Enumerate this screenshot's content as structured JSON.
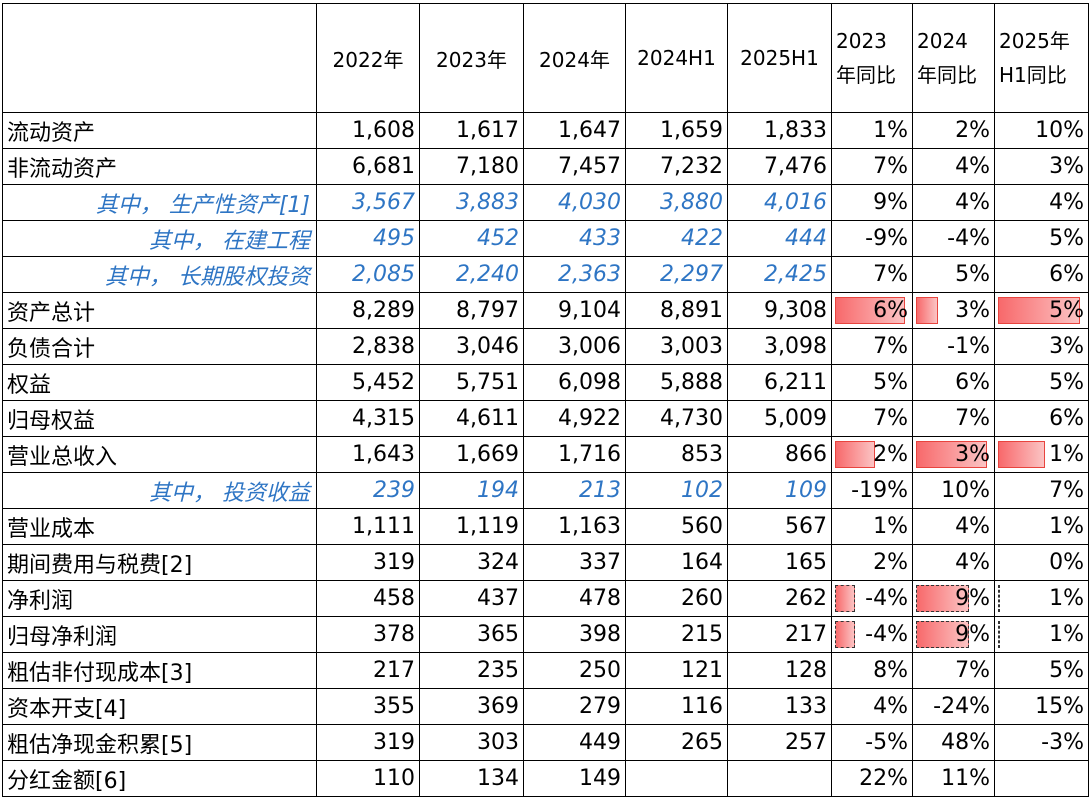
{
  "chart_data": {
    "type": "table",
    "headers": [
      "",
      "2022年",
      "2023年",
      "2024年",
      "2024H1",
      "2025H1",
      "2023\n年同比",
      "2024\n年同比",
      "2025年\nH1同比"
    ],
    "rows": [
      {
        "label": "流动资产",
        "values": [
          "1,608",
          "1,617",
          "1,647",
          "1,659",
          "1,833"
        ],
        "pct": [
          "1%",
          "2%",
          "10%"
        ],
        "sub": false
      },
      {
        "label": "非流动资产",
        "values": [
          "6,681",
          "7,180",
          "7,457",
          "7,232",
          "7,476"
        ],
        "pct": [
          "7%",
          "4%",
          "3%"
        ],
        "sub": false
      },
      {
        "label": "其中， 生产性资产[1]",
        "values": [
          "3,567",
          "3,883",
          "4,030",
          "3,880",
          "4,016"
        ],
        "pct": [
          "9%",
          "4%",
          "4%"
        ],
        "sub": true
      },
      {
        "label": "其中， 在建工程",
        "values": [
          "495",
          "452",
          "433",
          "422",
          "444"
        ],
        "pct": [
          "-9%",
          "-4%",
          "5%"
        ],
        "sub": true
      },
      {
        "label": "其中， 长期股权投资",
        "values": [
          "2,085",
          "2,240",
          "2,363",
          "2,297",
          "2,425"
        ],
        "pct": [
          "7%",
          "5%",
          "6%"
        ],
        "sub": true
      },
      {
        "label": "资产总计",
        "values": [
          "8,289",
          "8,797",
          "9,104",
          "8,891",
          "9,308"
        ],
        "pct": [
          "6%",
          "3%",
          "5%"
        ],
        "sub": false,
        "bars": [
          0.92,
          0.32,
          0.92
        ],
        "dashed": [
          false,
          false,
          false
        ]
      },
      {
        "label": "负债合计",
        "values": [
          "2,838",
          "3,046",
          "3,006",
          "3,003",
          "3,098"
        ],
        "pct": [
          "7%",
          "-1%",
          "3%"
        ],
        "sub": false
      },
      {
        "label": "权益",
        "values": [
          "5,452",
          "5,751",
          "6,098",
          "5,888",
          "6,211"
        ],
        "pct": [
          "5%",
          "6%",
          "5%"
        ],
        "sub": false
      },
      {
        "label": "归母权益",
        "values": [
          "4,315",
          "4,611",
          "4,922",
          "4,730",
          "5,009"
        ],
        "pct": [
          "7%",
          "7%",
          "6%"
        ],
        "sub": false
      },
      {
        "label": "营业总收入",
        "values": [
          "1,643",
          "1,669",
          "1,716",
          "853",
          "866"
        ],
        "pct": [
          "2%",
          "3%",
          "1%"
        ],
        "sub": false,
        "bars": [
          0.55,
          0.92,
          0.55
        ],
        "dashed": [
          false,
          false,
          false
        ]
      },
      {
        "label": "其中， 投资收益",
        "values": [
          "239",
          "194",
          "213",
          "102",
          "109"
        ],
        "pct": [
          "-19%",
          "10%",
          "7%"
        ],
        "sub": true
      },
      {
        "label": "营业成本",
        "values": [
          "1,111",
          "1,119",
          "1,163",
          "560",
          "567"
        ],
        "pct": [
          "1%",
          "4%",
          "1%"
        ],
        "sub": false
      },
      {
        "label": "期间费用与税费[2]",
        "values": [
          "319",
          "324",
          "337",
          "164",
          "165"
        ],
        "pct": [
          "2%",
          "4%",
          "0%"
        ],
        "sub": false
      },
      {
        "label": "净利润",
        "values": [
          "458",
          "437",
          "478",
          "260",
          "262"
        ],
        "pct": [
          "-4%",
          "9%",
          "1%"
        ],
        "sub": false,
        "bars": [
          0.3,
          0.7,
          0.06
        ],
        "dashed": [
          true,
          true,
          true
        ]
      },
      {
        "label": "归母净利润",
        "values": [
          "378",
          "365",
          "398",
          "215",
          "217"
        ],
        "pct": [
          "-4%",
          "9%",
          "1%"
        ],
        "sub": false,
        "bars": [
          0.3,
          0.7,
          0.06
        ],
        "dashed": [
          true,
          true,
          true
        ]
      },
      {
        "label": "粗估非付现成本[3]",
        "values": [
          "217",
          "235",
          "250",
          "121",
          "128"
        ],
        "pct": [
          "8%",
          "7%",
          "5%"
        ],
        "sub": false
      },
      {
        "label": "资本开支[4]",
        "values": [
          "355",
          "369",
          "279",
          "116",
          "133"
        ],
        "pct": [
          "4%",
          "-24%",
          "15%"
        ],
        "sub": false
      },
      {
        "label": "粗估净现金积累[5]",
        "values": [
          "319",
          "303",
          "449",
          "265",
          "257"
        ],
        "pct": [
          "-5%",
          "48%",
          "-3%"
        ],
        "sub": false
      },
      {
        "label": "分红金额[6]",
        "values": [
          "110",
          "134",
          "149",
          "",
          ""
        ],
        "pct": [
          "22%",
          "11%",
          ""
        ],
        "sub": false
      }
    ]
  }
}
